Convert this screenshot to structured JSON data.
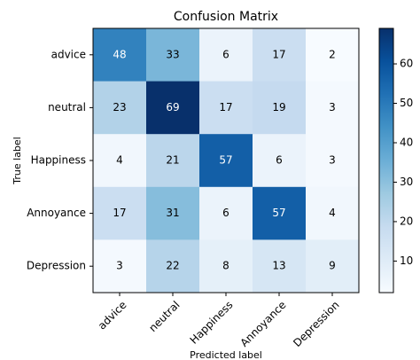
{
  "chart_data": {
    "type": "heatmap",
    "title": "Confusion Matrix",
    "x_label": "Predicted label",
    "y_label": "True label",
    "x_categories": [
      "advice",
      "neutral",
      "Happiness",
      "Annoyance",
      "Depression"
    ],
    "y_categories": [
      "advice",
      "neutral",
      "Happiness",
      "Annoyance",
      "Depression"
    ],
    "values": [
      [
        48,
        33,
        6,
        17,
        2
      ],
      [
        23,
        69,
        17,
        19,
        3
      ],
      [
        4,
        21,
        57,
        6,
        3
      ],
      [
        17,
        31,
        6,
        57,
        4
      ],
      [
        3,
        22,
        8,
        13,
        9
      ]
    ],
    "zlim": [
      2,
      69
    ],
    "zticks": [
      10,
      20,
      30,
      40,
      50,
      60
    ],
    "colormap": [
      "#f7fbff",
      "#deebf7",
      "#c6dbef",
      "#9ecae1",
      "#6baed6",
      "#4292c6",
      "#2171b5",
      "#08519c",
      "#08306b"
    ]
  }
}
